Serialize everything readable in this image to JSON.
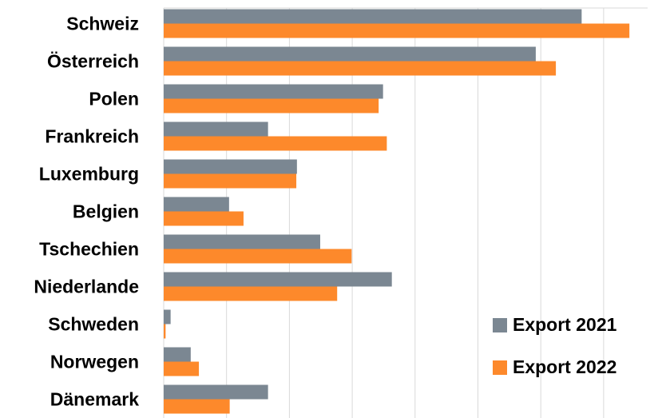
{
  "chart_data": {
    "type": "hbar",
    "categories": [
      "Schweiz",
      "Österreich",
      "Polen",
      "Frankreich",
      "Luxemburg",
      "Belgien",
      "Tschechien",
      "Niederlande",
      "Schweden",
      "Norwegen",
      "Dänemark"
    ],
    "series": [
      {
        "name": "Export 2021",
        "color": "#7b8792",
        "values": [
          6.65,
          5.92,
          3.49,
          1.66,
          2.12,
          1.04,
          2.49,
          3.63,
          0.11,
          0.43,
          1.66
        ]
      },
      {
        "name": "Export 2022",
        "color": "#fd892b",
        "values": [
          7.41,
          6.24,
          3.42,
          3.55,
          2.11,
          1.27,
          2.99,
          2.76,
          0.03,
          0.56,
          1.05
        ]
      }
    ],
    "xlim": [
      0,
      7.7
    ],
    "xticks": [
      0,
      1,
      2,
      3,
      4,
      5,
      6,
      7
    ],
    "tick_labels": false,
    "grid": true,
    "legend": "lower right"
  }
}
